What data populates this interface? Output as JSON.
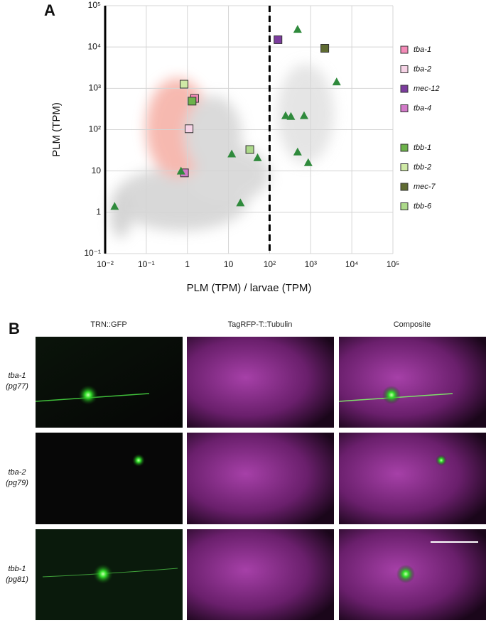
{
  "chart_data": {
    "type": "scatter",
    "panel_label": "A",
    "xlabel": "PLM (TPM) / larvae (TPM)",
    "ylabel": "PLM (TPM)",
    "log_x": true,
    "log_y": true,
    "grid": true,
    "legend": "right",
    "xlim": [
      0.01,
      100000
    ],
    "ylim": [
      0.1,
      100000
    ],
    "xticks": [
      {
        "value": 0.01,
        "label": "10⁻²"
      },
      {
        "value": 0.1,
        "label": "10⁻¹"
      },
      1,
      10,
      {
        "value": 100,
        "label": "10²"
      },
      {
        "value": 1000,
        "label": "10³"
      },
      {
        "value": 10000,
        "label": "10⁴"
      },
      {
        "value": 100000,
        "label": "10⁵"
      }
    ],
    "yticks": [
      {
        "value": 0.1,
        "label": "10⁻¹"
      },
      1,
      10,
      {
        "value": 100,
        "label": "10²"
      },
      {
        "value": 1000,
        "label": "10³"
      },
      {
        "value": 10000,
        "label": "10⁴"
      },
      {
        "value": 100000,
        "label": "10⁵"
      }
    ],
    "threshold_x": 100,
    "series": [
      {
        "name": "tba-1",
        "color": "#f48bb8",
        "marker": "square",
        "x": [
          1.5
        ],
        "values": [
          570
        ]
      },
      {
        "name": "tba-2",
        "color": "#f6d3e6",
        "marker": "square",
        "x": [
          1.1
        ],
        "values": [
          105
        ]
      },
      {
        "name": "mec-12",
        "color": "#7c3c9e",
        "marker": "square",
        "x": [
          160
        ],
        "values": [
          15000
        ]
      },
      {
        "name": "tba-4",
        "color": "#d27ac8",
        "marker": "square",
        "x": [
          0.85
        ],
        "values": [
          9
        ]
      },
      {
        "name": "tbb-1",
        "color": "#6cb24a",
        "marker": "square",
        "x": [
          1.3
        ],
        "values": [
          490
        ]
      },
      {
        "name": "tbb-2",
        "color": "#cfe9a6",
        "marker": "square",
        "x": [
          0.83
        ],
        "values": [
          1260
        ]
      },
      {
        "name": "mec-7",
        "color": "#5f6b32",
        "marker": "square",
        "x": [
          2200
        ],
        "values": [
          9300
        ]
      },
      {
        "name": "tbb-6",
        "color": "#acd98a",
        "marker": "square",
        "x": [
          33
        ],
        "values": [
          33
        ]
      },
      {
        "color": "#2f8a3c",
        "marker": "triangle",
        "x": [
          0.017,
          0.7,
          12,
          19.5,
          51,
          480,
          4270,
          245,
          330,
          690,
          480,
          870
        ],
        "values": [
          1.4,
          10,
          26,
          1.7,
          21,
          27000,
          1440,
          220,
          210,
          220,
          29,
          16
        ]
      }
    ]
  },
  "panel_b": {
    "label": "B",
    "columns": [
      "TRN::GFP",
      "TagRFP-T::Tubulin",
      "Composite"
    ],
    "rows": [
      {
        "gene": "tba-1",
        "allele": "(pg77)"
      },
      {
        "gene": "tba-2",
        "allele": "(pg79)"
      },
      {
        "gene": "tbb-1",
        "allele": "(pg81)"
      }
    ]
  }
}
